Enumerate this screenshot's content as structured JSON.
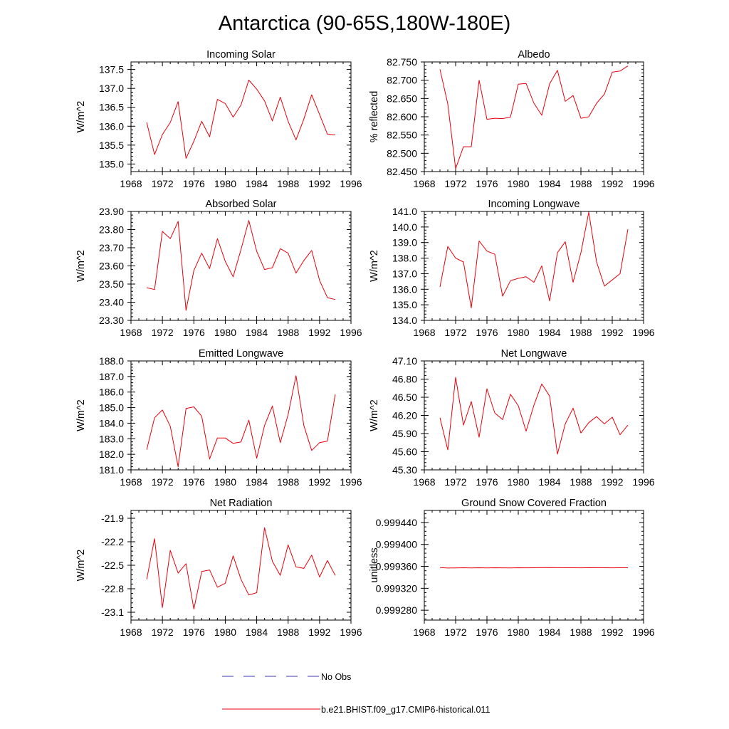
{
  "figure_title": "Antarctica (90-65S,180W-180E)",
  "legend": [
    {
      "label": "No Obs",
      "style": "dashed",
      "color": "#3b3bb8"
    },
    {
      "label": "b.e21.BHIST.f09_g17.CMIP6-historical.011",
      "style": "solid",
      "color": "#e8000b"
    }
  ],
  "chart_data": [
    {
      "type": "line",
      "title": "Incoming Solar",
      "ylabel": "W/m^2",
      "xlim": [
        1968,
        1996
      ],
      "xticks": [
        1968,
        1972,
        1976,
        1980,
        1984,
        1988,
        1992,
        1996
      ],
      "ylim": [
        134.8,
        137.7
      ],
      "yticks": [
        135.0,
        135.5,
        136.0,
        136.5,
        137.0,
        137.5
      ],
      "ytick_labels": [
        "135.0",
        "135.5",
        "136.0",
        "136.5",
        "137.0",
        "137.5"
      ],
      "x": [
        1970,
        1971,
        1972,
        1973,
        1974,
        1975,
        1976,
        1977,
        1978,
        1979,
        1980,
        1981,
        1982,
        1983,
        1984,
        1985,
        1986,
        1987,
        1988,
        1989,
        1990,
        1991,
        1992,
        1993,
        1994
      ],
      "series": [
        {
          "color": "#e8000b",
          "values": [
            136.1,
            135.25,
            135.78,
            136.1,
            136.65,
            135.15,
            135.6,
            136.13,
            135.72,
            136.71,
            136.6,
            136.24,
            136.56,
            137.22,
            136.98,
            136.67,
            136.14,
            136.77,
            136.13,
            135.64,
            136.19,
            136.83,
            136.31,
            135.79,
            135.77
          ]
        }
      ]
    },
    {
      "type": "line",
      "title": "Albedo",
      "ylabel": "% reflected",
      "xlim": [
        1968,
        1996
      ],
      "xticks": [
        1968,
        1972,
        1976,
        1980,
        1984,
        1988,
        1992,
        1996
      ],
      "ylim": [
        82.45,
        82.75
      ],
      "yticks": [
        82.45,
        82.5,
        82.55,
        82.6,
        82.65,
        82.7,
        82.75
      ],
      "ytick_labels": [
        "82.450",
        "82.500",
        "82.550",
        "82.600",
        "82.650",
        "82.700",
        "82.750"
      ],
      "x": [
        1970,
        1971,
        1972,
        1973,
        1974,
        1975,
        1976,
        1977,
        1978,
        1979,
        1980,
        1981,
        1982,
        1983,
        1984,
        1985,
        1986,
        1987,
        1988,
        1989,
        1990,
        1991,
        1992,
        1993,
        1994
      ],
      "series": [
        {
          "color": "#e8000b",
          "values": [
            82.73,
            82.635,
            82.458,
            82.518,
            82.518,
            82.7,
            82.593,
            82.596,
            82.595,
            82.599,
            82.689,
            82.691,
            82.637,
            82.604,
            82.69,
            82.727,
            82.642,
            82.658,
            82.596,
            82.6,
            82.637,
            82.662,
            82.722,
            82.725,
            82.739
          ]
        }
      ]
    },
    {
      "type": "line",
      "title": "Absorbed Solar",
      "ylabel": "W/m^2",
      "xlim": [
        1968,
        1996
      ],
      "xticks": [
        1968,
        1972,
        1976,
        1980,
        1984,
        1988,
        1992,
        1996
      ],
      "ylim": [
        23.3,
        23.9
      ],
      "yticks": [
        23.3,
        23.4,
        23.5,
        23.6,
        23.7,
        23.8,
        23.9
      ],
      "ytick_labels": [
        "23.30",
        "23.40",
        "23.50",
        "23.60",
        "23.70",
        "23.80",
        "23.90"
      ],
      "x": [
        1970,
        1971,
        1972,
        1973,
        1974,
        1975,
        1976,
        1977,
        1978,
        1979,
        1980,
        1981,
        1982,
        1983,
        1984,
        1985,
        1986,
        1987,
        1988,
        1989,
        1990,
        1991,
        1992,
        1993,
        1994
      ],
      "series": [
        {
          "color": "#e8000b",
          "values": [
            23.48,
            23.47,
            23.79,
            23.75,
            23.845,
            23.355,
            23.575,
            23.67,
            23.585,
            23.75,
            23.625,
            23.54,
            23.69,
            23.85,
            23.68,
            23.58,
            23.59,
            23.695,
            23.67,
            23.56,
            23.63,
            23.685,
            23.52,
            23.425,
            23.415
          ]
        }
      ]
    },
    {
      "type": "line",
      "title": "Incoming Longwave",
      "ylabel": "W/m^2",
      "xlim": [
        1968,
        1996
      ],
      "xticks": [
        1968,
        1972,
        1976,
        1980,
        1984,
        1988,
        1992,
        1996
      ],
      "ylim": [
        134.0,
        141.0
      ],
      "yticks": [
        134.0,
        135.0,
        136.0,
        137.0,
        138.0,
        139.0,
        140.0,
        141.0
      ],
      "ytick_labels": [
        "134.0",
        "135.0",
        "136.0",
        "137.0",
        "138.0",
        "139.0",
        "140.0",
        "141.0"
      ],
      "x": [
        1970,
        1971,
        1972,
        1973,
        1974,
        1975,
        1976,
        1977,
        1978,
        1979,
        1980,
        1981,
        1982,
        1983,
        1984,
        1985,
        1986,
        1987,
        1988,
        1989,
        1990,
        1991,
        1992,
        1993,
        1994
      ],
      "series": [
        {
          "color": "#e8000b",
          "values": [
            136.15,
            138.75,
            138.0,
            137.75,
            134.8,
            139.1,
            138.45,
            138.25,
            135.55,
            136.55,
            136.7,
            136.8,
            136.45,
            137.5,
            135.25,
            138.35,
            139.05,
            136.45,
            138.35,
            140.95,
            137.75,
            136.2,
            136.6,
            137.0,
            139.85
          ]
        }
      ]
    },
    {
      "type": "line",
      "title": "Emitted Longwave",
      "ylabel": "W/m^2",
      "xlim": [
        1968,
        1996
      ],
      "xticks": [
        1968,
        1972,
        1976,
        1980,
        1984,
        1988,
        1992,
        1996
      ],
      "ylim": [
        181.0,
        188.0
      ],
      "yticks": [
        181.0,
        182.0,
        183.0,
        184.0,
        185.0,
        186.0,
        187.0,
        188.0
      ],
      "ytick_labels": [
        "181.0",
        "182.0",
        "183.0",
        "184.0",
        "185.0",
        "186.0",
        "187.0",
        "188.0"
      ],
      "x": [
        1970,
        1971,
        1972,
        1973,
        1974,
        1975,
        1976,
        1977,
        1978,
        1979,
        1980,
        1981,
        1982,
        1983,
        1984,
        1985,
        1986,
        1987,
        1988,
        1989,
        1990,
        1991,
        1992,
        1993,
        1994
      ],
      "series": [
        {
          "color": "#e8000b",
          "values": [
            182.3,
            184.35,
            184.85,
            183.8,
            181.2,
            184.95,
            185.05,
            184.45,
            181.7,
            183.05,
            183.05,
            182.7,
            182.8,
            184.2,
            181.75,
            183.85,
            185.1,
            182.75,
            184.55,
            187.05,
            183.85,
            182.25,
            182.75,
            182.85,
            185.85
          ]
        }
      ]
    },
    {
      "type": "line",
      "title": "Net Longwave",
      "ylabel": "W/m^2",
      "xlim": [
        1968,
        1996
      ],
      "xticks": [
        1968,
        1972,
        1976,
        1980,
        1984,
        1988,
        1992,
        1996
      ],
      "ylim": [
        45.3,
        47.1
      ],
      "yticks": [
        45.3,
        45.6,
        45.9,
        46.2,
        46.5,
        46.8,
        47.1
      ],
      "ytick_labels": [
        "45.30",
        "45.60",
        "45.90",
        "46.20",
        "46.50",
        "46.80",
        "47.10"
      ],
      "x": [
        1970,
        1971,
        1972,
        1973,
        1974,
        1975,
        1976,
        1977,
        1978,
        1979,
        1980,
        1981,
        1982,
        1983,
        1984,
        1985,
        1986,
        1987,
        1988,
        1989,
        1990,
        1991,
        1992,
        1993,
        1994
      ],
      "series": [
        {
          "color": "#e8000b",
          "values": [
            46.16,
            45.63,
            46.83,
            46.04,
            46.43,
            45.84,
            46.64,
            46.24,
            46.13,
            46.55,
            46.36,
            45.94,
            46.37,
            46.72,
            46.52,
            45.56,
            46.06,
            46.32,
            45.91,
            46.08,
            46.18,
            46.06,
            46.17,
            45.88,
            46.04
          ]
        }
      ]
    },
    {
      "type": "line",
      "title": "Net Radiation",
      "ylabel": "W/m^2",
      "xlim": [
        1968,
        1996
      ],
      "xticks": [
        1968,
        1972,
        1976,
        1980,
        1984,
        1988,
        1992,
        1996
      ],
      "ylim": [
        -23.2,
        -21.8
      ],
      "yticks": [
        -23.1,
        -22.8,
        -22.5,
        -22.2,
        -21.9
      ],
      "ytick_labels": [
        "-23.1",
        "-22.8",
        "-22.5",
        "-22.2",
        "-21.9"
      ],
      "x": [
        1970,
        1971,
        1972,
        1973,
        1974,
        1975,
        1976,
        1977,
        1978,
        1979,
        1980,
        1981,
        1982,
        1983,
        1984,
        1985,
        1986,
        1987,
        1988,
        1989,
        1990,
        1991,
        1992,
        1993,
        1994
      ],
      "series": [
        {
          "color": "#e8000b",
          "values": [
            -22.68,
            -22.16,
            -23.04,
            -22.31,
            -22.6,
            -22.48,
            -23.06,
            -22.58,
            -22.56,
            -22.78,
            -22.73,
            -22.38,
            -22.68,
            -22.88,
            -22.85,
            -22.02,
            -22.45,
            -22.63,
            -22.24,
            -22.52,
            -22.54,
            -22.37,
            -22.65,
            -22.44,
            -22.63
          ]
        }
      ]
    },
    {
      "type": "line",
      "title": "Ground Snow Covered Fraction",
      "ylabel": "unitless",
      "xlim": [
        1968,
        1996
      ],
      "xticks": [
        1968,
        1972,
        1976,
        1980,
        1984,
        1988,
        1992,
        1996
      ],
      "ylim": [
        0.999262,
        0.999462
      ],
      "yticks": [
        0.99928,
        0.99932,
        0.99936,
        0.9994,
        0.99944
      ],
      "ytick_labels": [
        "0.999280",
        "0.999320",
        "0.999360",
        "0.999400",
        "0.999440"
      ],
      "x": [
        1970,
        1971,
        1972,
        1973,
        1974,
        1975,
        1976,
        1977,
        1978,
        1979,
        1980,
        1981,
        1982,
        1983,
        1984,
        1985,
        1986,
        1987,
        1988,
        1989,
        1990,
        1991,
        1992,
        1993,
        1994
      ],
      "series": [
        {
          "color": "#e8000b",
          "values": [
            0.9993577,
            0.9993569,
            0.9993572,
            0.9993575,
            0.9993571,
            0.9993574,
            0.999357,
            0.9993575,
            0.9993573,
            0.9993571,
            0.9993574,
            0.9993573,
            0.9993575,
            0.9993576,
            0.9993578,
            0.9993576,
            0.9993574,
            0.9993575,
            0.9993573,
            0.9993576,
            0.9993574,
            0.9993575,
            0.9993573,
            0.9993575,
            0.9993574
          ]
        }
      ]
    }
  ]
}
